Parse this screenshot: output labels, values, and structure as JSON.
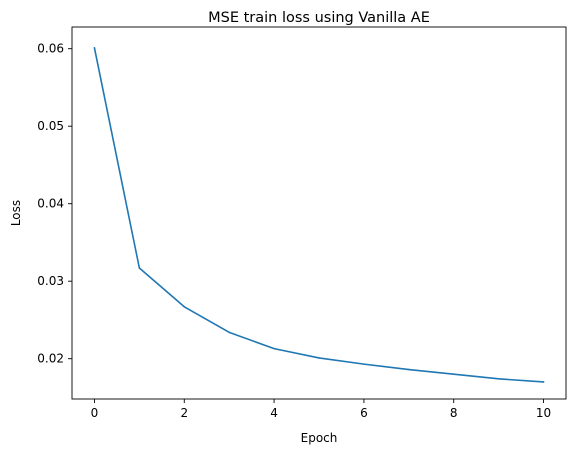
{
  "chart_data": {
    "type": "line",
    "title": "MSE train loss using Vanilla AE",
    "xlabel": "Epoch",
    "ylabel": "Loss",
    "xlim": [
      -0.5,
      10.5
    ],
    "ylim": [
      0.0148,
      0.0628
    ],
    "xticks": [
      0,
      2,
      4,
      6,
      8,
      10
    ],
    "xtick_labels": [
      "0",
      "2",
      "4",
      "6",
      "8",
      "10"
    ],
    "yticks": [
      0.02,
      0.03,
      0.04,
      0.05,
      0.06
    ],
    "ytick_labels": [
      "0.02",
      "0.03",
      "0.04",
      "0.05",
      "0.06"
    ],
    "grid": false,
    "series": [
      {
        "color": "#1f77b4",
        "x": [
          0,
          1,
          2,
          3,
          4,
          5,
          6,
          7,
          8,
          9,
          10
        ],
        "y": [
          0.0601,
          0.0317,
          0.0267,
          0.0234,
          0.0213,
          0.0201,
          0.0193,
          0.0186,
          0.018,
          0.0174,
          0.017
        ]
      }
    ]
  }
}
